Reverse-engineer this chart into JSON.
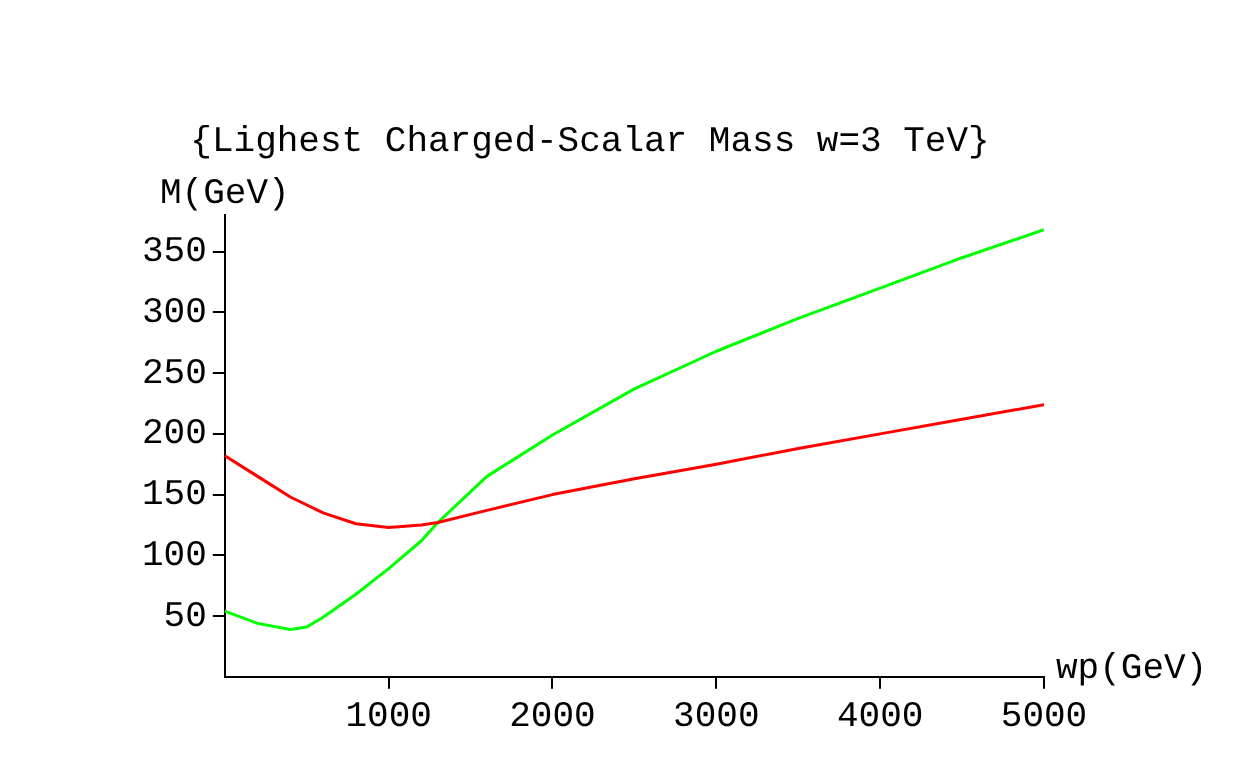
{
  "chart_data": {
    "type": "line",
    "title": "{Lighest Charged-Scalar Mass w=3 TeV}",
    "xlabel": "wp(GeV)",
    "ylabel": "M(GeV)",
    "xlim": [
      0,
      5000
    ],
    "ylim": [
      0,
      380
    ],
    "xticks": [
      1000,
      2000,
      3000,
      4000,
      5000
    ],
    "yticks": [
      50,
      100,
      150,
      200,
      250,
      300,
      350
    ],
    "grid": false,
    "legend": false,
    "marker": "none",
    "line_style": "solid",
    "series": [
      {
        "color": "#ff0000",
        "x": [
          0,
          200,
          400,
          600,
          800,
          1000,
          1200,
          1300,
          1600,
          2000,
          2500,
          3000,
          3500,
          4000,
          4500,
          5000
        ],
        "values": [
          182,
          165,
          148,
          135,
          126,
          123,
          125,
          127,
          137,
          150,
          163,
          175,
          188,
          200,
          212,
          224
        ]
      },
      {
        "color": "#00ff00",
        "x": [
          0,
          200,
          400,
          500,
          600,
          800,
          1000,
          1200,
          1300,
          1600,
          2000,
          2500,
          3000,
          3500,
          4000,
          4500,
          5000
        ],
        "values": [
          54,
          44,
          39,
          41,
          49,
          68,
          89,
          112,
          127,
          165,
          199,
          237,
          268,
          295,
          320,
          345,
          368
        ]
      }
    ]
  }
}
